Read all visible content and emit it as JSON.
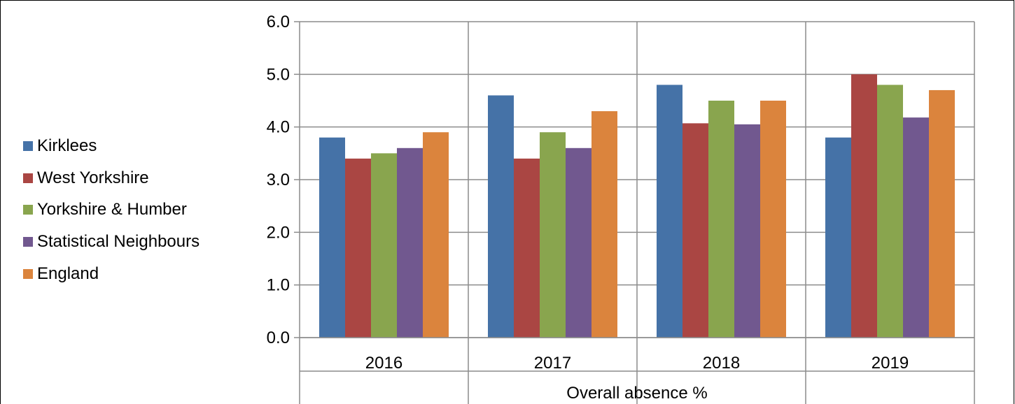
{
  "chart_data": {
    "type": "bar",
    "title": "",
    "xlabel": "Overall absence %",
    "ylabel": "",
    "categories": [
      "2016",
      "2017",
      "2018",
      "2019"
    ],
    "ylim": [
      0,
      6
    ],
    "yticks": [
      "0.0",
      "1.0",
      "2.0",
      "3.0",
      "4.0",
      "5.0",
      "6.0"
    ],
    "grid": true,
    "legend_position": "left",
    "series": [
      {
        "name": "Kirklees",
        "color": "#4572A7",
        "values": [
          3.8,
          4.6,
          4.8,
          3.8
        ]
      },
      {
        "name": "West Yorkshire",
        "color": "#AA4643",
        "values": [
          3.4,
          3.4,
          4.07,
          5.0
        ]
      },
      {
        "name": "Yorkshire & Humber",
        "color": "#89A54E",
        "values": [
          3.5,
          3.9,
          4.5,
          4.8
        ]
      },
      {
        "name": "Statistical Neighbours",
        "color": "#71588F",
        "values": [
          3.6,
          3.6,
          4.05,
          4.18
        ]
      },
      {
        "name": "England",
        "color": "#DB843D",
        "values": [
          3.9,
          4.3,
          4.5,
          4.7
        ]
      }
    ]
  }
}
